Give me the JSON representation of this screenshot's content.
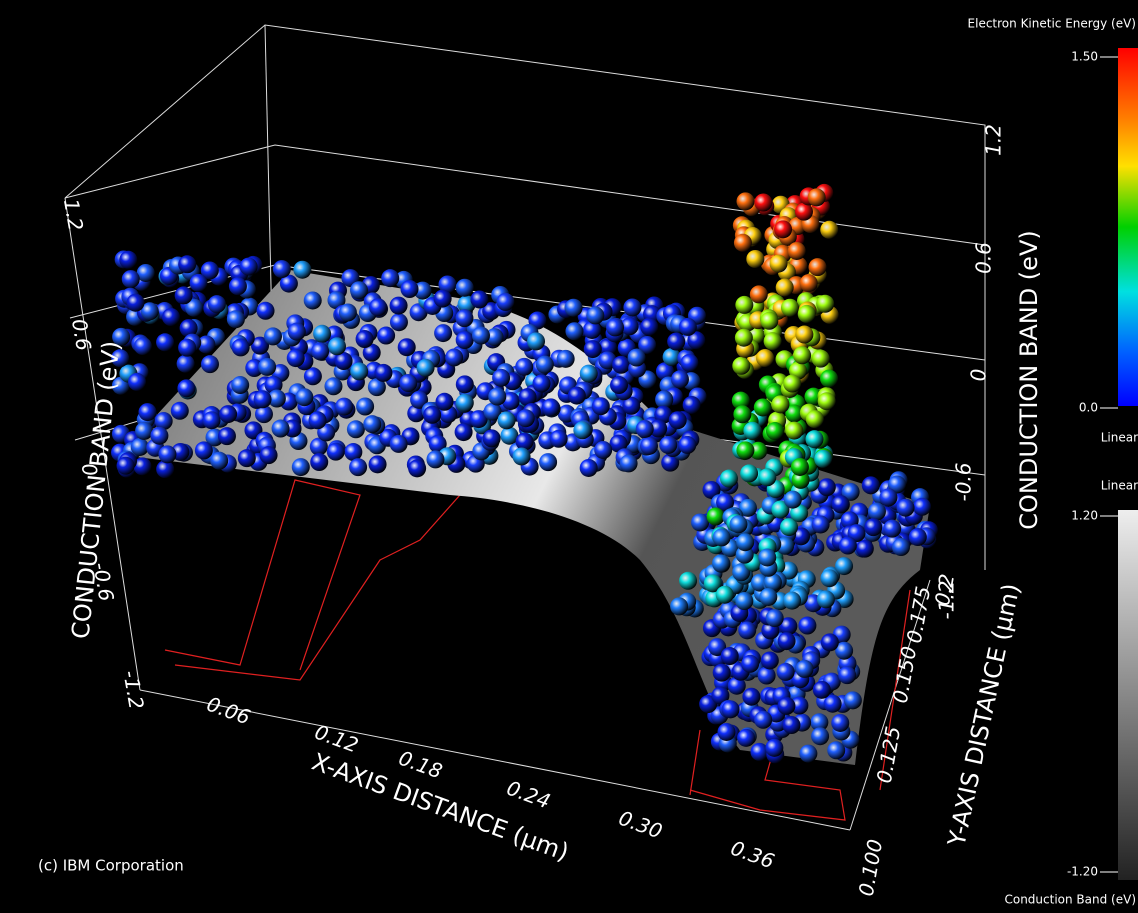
{
  "left_axis": {
    "title": "CONDUCTION BAND  (eV)",
    "ticks": [
      "1.2",
      "0.6",
      "0",
      "-0.6",
      "-1.2"
    ]
  },
  "right_axis": {
    "title": "CONDUCTION BAND  (eV)",
    "ticks": [
      "1.2",
      "0.6",
      "0",
      "-0.6",
      "-1.2"
    ]
  },
  "x_axis": {
    "title": "X-AXIS DISTANCE  (μm)",
    "ticks": [
      "0.06",
      "0.12",
      "0.18",
      "0.24",
      "0.30",
      "0.36"
    ]
  },
  "y_axis": {
    "title": "Y-AXIS DISTANCE (μm)",
    "ticks": [
      "0.100",
      "0.125",
      "0.150",
      "0.175",
      "0.2"
    ]
  },
  "energy_legend": {
    "title": "Electron Kinetic Energy  (eV)",
    "max": "1.50",
    "min": "0.0",
    "scale": "Linear"
  },
  "band_legend": {
    "scale": "Linear",
    "max": "1.20",
    "min": "-1.20",
    "title": "Conduction Band  (eV)"
  },
  "copyright": "(c) IBM Corporation"
}
